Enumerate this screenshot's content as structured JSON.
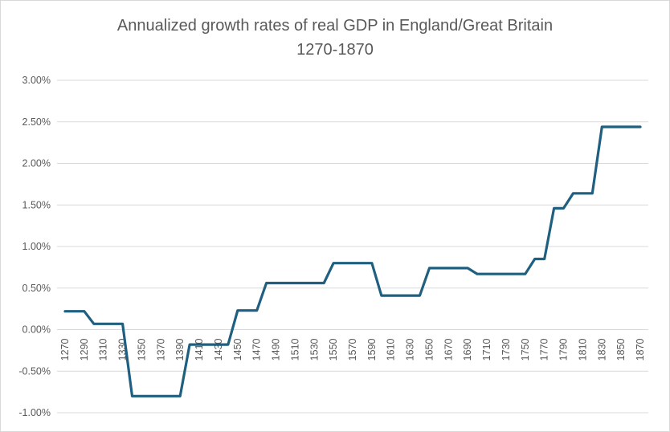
{
  "chart_data": {
    "type": "line",
    "title": "Annualized growth rates of real GDP in England/Great Britain",
    "subtitle": "1270-1870",
    "xlabel": "",
    "ylabel": "",
    "ylim": [
      -0.01,
      0.03
    ],
    "y_ticks": [
      "3.00%",
      "2.50%",
      "2.00%",
      "1.50%",
      "1.00%",
      "0.50%",
      "0.00%",
      "-0.50%",
      "-1.00%"
    ],
    "x_tick_labels": [
      "1270",
      "1290",
      "1310",
      "1330",
      "1350",
      "1370",
      "1390",
      "1410",
      "1430",
      "1450",
      "1470",
      "1490",
      "1510",
      "1530",
      "1550",
      "1570",
      "1590",
      "1610",
      "1630",
      "1650",
      "1670",
      "1690",
      "1710",
      "1730",
      "1750",
      "1770",
      "1790",
      "1810",
      "1830",
      "1850",
      "1870"
    ],
    "grid": true,
    "legend": "none",
    "line_color": "#1f5f7f",
    "x": [
      1270,
      1280,
      1290,
      1300,
      1310,
      1320,
      1330,
      1340,
      1350,
      1360,
      1370,
      1380,
      1390,
      1400,
      1410,
      1420,
      1430,
      1440,
      1450,
      1460,
      1470,
      1480,
      1490,
      1500,
      1510,
      1520,
      1530,
      1540,
      1550,
      1560,
      1570,
      1580,
      1590,
      1600,
      1610,
      1620,
      1630,
      1640,
      1650,
      1660,
      1670,
      1680,
      1690,
      1700,
      1710,
      1720,
      1730,
      1740,
      1750,
      1760,
      1770,
      1780,
      1790,
      1800,
      1810,
      1820,
      1830,
      1840,
      1850,
      1860,
      1870
    ],
    "values": [
      0.0022,
      0.0022,
      0.0022,
      0.0007,
      0.0007,
      0.0007,
      0.0007,
      -0.008,
      -0.008,
      -0.008,
      -0.008,
      -0.008,
      -0.008,
      -0.0018,
      -0.0018,
      -0.0018,
      -0.0018,
      -0.0018,
      0.0023,
      0.0023,
      0.0023,
      0.0056,
      0.0056,
      0.0056,
      0.0056,
      0.0056,
      0.0056,
      0.0056,
      0.008,
      0.008,
      0.008,
      0.008,
      0.008,
      0.0041,
      0.0041,
      0.0041,
      0.0041,
      0.0041,
      0.0074,
      0.0074,
      0.0074,
      0.0074,
      0.0074,
      0.0067,
      0.0067,
      0.0067,
      0.0067,
      0.0067,
      0.0067,
      0.0085,
      0.0085,
      0.0146,
      0.0146,
      0.0164,
      0.0164,
      0.0164,
      0.0244,
      0.0244,
      0.0244,
      0.0244,
      0.0244
    ]
  }
}
